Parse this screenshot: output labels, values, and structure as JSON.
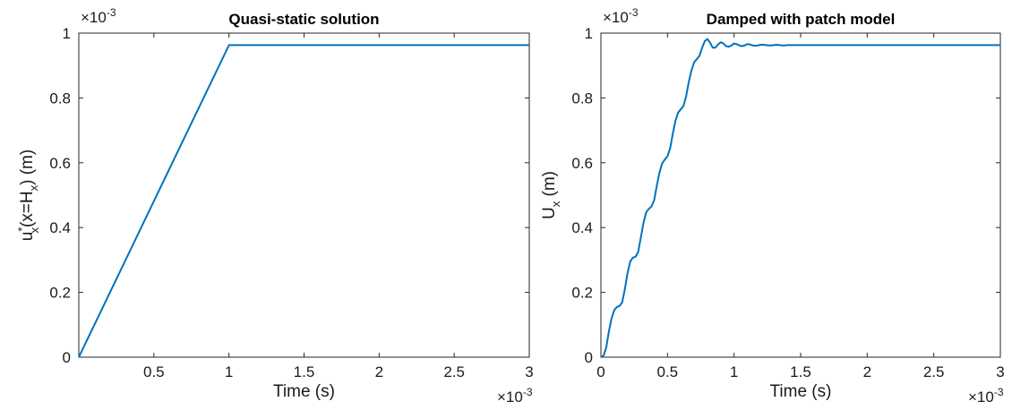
{
  "chart_data": [
    {
      "type": "line",
      "title": "Quasi-static solution",
      "xlabel": "Time (s)",
      "ylabel_parts": {
        "base": "u",
        "sup": "*",
        "sub": "x",
        "mid": "(x=H",
        "sub2": "x",
        "end": ")  (m)"
      },
      "x_exponent_base": "×10",
      "x_exponent_power": "-3",
      "y_exponent_base": "×10",
      "y_exponent_power": "-3",
      "xlim": [
        0,
        3
      ],
      "ylim": [
        0,
        1
      ],
      "xticks": [
        0.5,
        1,
        1.5,
        2,
        2.5,
        3
      ],
      "xtick_labels": [
        "0.5",
        "1",
        "1.5",
        "2",
        "2.5",
        "3"
      ],
      "yticks": [
        0,
        0.2,
        0.4,
        0.6,
        0.8,
        1
      ],
      "ytick_labels": [
        "0",
        "0.2",
        "0.4",
        "0.6",
        "0.8",
        "1"
      ],
      "color": "#0072BD",
      "series": [
        {
          "x": [
            0,
            1,
            3
          ],
          "y": [
            0,
            0.963,
            0.963
          ]
        }
      ]
    },
    {
      "type": "line",
      "title": "Damped with patch model",
      "xlabel": "Time (s)",
      "ylabel_parts": {
        "base": "U",
        "sub": "x",
        "end": " (m)"
      },
      "x_exponent_base": "×10",
      "x_exponent_power": "-3",
      "y_exponent_base": "×10",
      "y_exponent_power": "-3",
      "xlim": [
        0,
        3
      ],
      "ylim": [
        0,
        1
      ],
      "xticks": [
        0,
        0.5,
        1,
        1.5,
        2,
        2.5,
        3
      ],
      "xtick_labels": [
        "0",
        "0.5",
        "1",
        "1.5",
        "2",
        "2.5",
        "3"
      ],
      "yticks": [
        0,
        0.2,
        0.4,
        0.6,
        0.8,
        1
      ],
      "ytick_labels": [
        "0",
        "0.2",
        "0.4",
        "0.6",
        "0.8",
        "1"
      ],
      "color": "#0072BD",
      "series": [
        {
          "x": [
            0,
            0.02,
            0.04,
            0.06,
            0.08,
            0.1,
            0.12,
            0.14,
            0.16,
            0.18,
            0.2,
            0.22,
            0.24,
            0.26,
            0.28,
            0.3,
            0.32,
            0.34,
            0.36,
            0.38,
            0.4,
            0.42,
            0.44,
            0.46,
            0.48,
            0.5,
            0.52,
            0.54,
            0.56,
            0.58,
            0.6,
            0.62,
            0.64,
            0.66,
            0.68,
            0.7,
            0.72,
            0.74,
            0.76,
            0.78,
            0.8,
            0.82,
            0.84,
            0.86,
            0.88,
            0.9,
            0.92,
            0.94,
            0.96,
            0.98,
            1.0,
            1.02,
            1.04,
            1.06,
            1.08,
            1.1,
            1.12,
            1.14,
            1.16,
            1.18,
            1.2,
            1.22,
            1.24,
            1.26,
            1.28,
            1.3,
            1.32,
            1.34,
            1.36,
            1.38,
            1.4,
            1.45,
            1.5,
            1.55,
            1.6,
            1.65,
            1.7,
            1.8,
            1.9,
            2.0,
            2.2,
            2.4,
            2.6,
            2.8,
            3.0
          ],
          "y": [
            0,
            0.005,
            0.03,
            0.08,
            0.12,
            0.145,
            0.155,
            0.158,
            0.17,
            0.21,
            0.26,
            0.295,
            0.307,
            0.31,
            0.325,
            0.37,
            0.415,
            0.447,
            0.458,
            0.465,
            0.485,
            0.53,
            0.57,
            0.598,
            0.61,
            0.62,
            0.645,
            0.69,
            0.73,
            0.755,
            0.765,
            0.775,
            0.805,
            0.85,
            0.885,
            0.91,
            0.92,
            0.93,
            0.955,
            0.975,
            0.982,
            0.97,
            0.955,
            0.955,
            0.965,
            0.972,
            0.968,
            0.96,
            0.958,
            0.962,
            0.968,
            0.966,
            0.962,
            0.96,
            0.962,
            0.966,
            0.965,
            0.962,
            0.961,
            0.962,
            0.964,
            0.964,
            0.963,
            0.962,
            0.962,
            0.963,
            0.964,
            0.963,
            0.962,
            0.962,
            0.963,
            0.963,
            0.963,
            0.963,
            0.963,
            0.963,
            0.963,
            0.963,
            0.963,
            0.963,
            0.963,
            0.963,
            0.963,
            0.963,
            0.963
          ]
        }
      ]
    }
  ]
}
